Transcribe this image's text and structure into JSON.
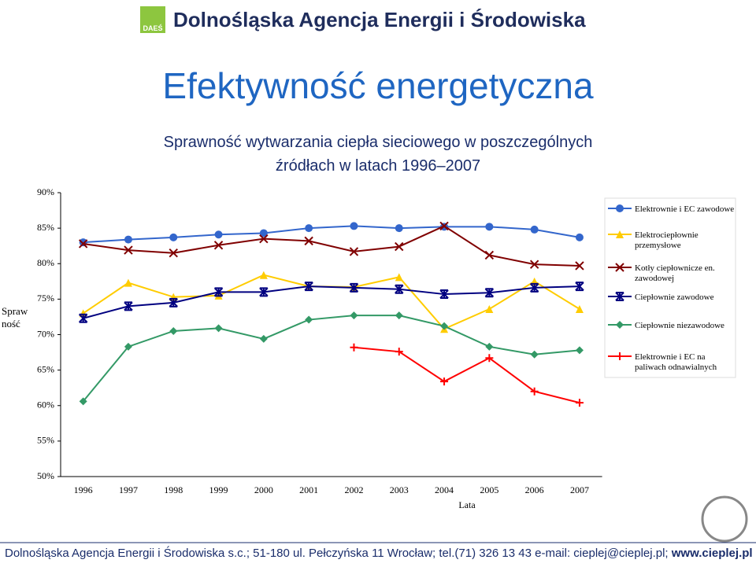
{
  "header": {
    "logo": "DAEŚ",
    "title": "Dolnośląska Agencja Energii i Środowiska"
  },
  "slide_title": "Efektywność energetyczna",
  "chart_data": {
    "type": "line",
    "title": "Sprawność wytwarzania ciepła sieciowego w poszczególnych źródłach w latach 1996–2007",
    "x_label": "Lata",
    "y_label": "Spraw ność",
    "categories": [
      "1996",
      "1997",
      "1998",
      "1999",
      "2000",
      "2001",
      "2002",
      "2003",
      "2004",
      "2005",
      "2006",
      "2007"
    ],
    "ylim": [
      50,
      90
    ],
    "yticks": [
      {
        "value": 50,
        "label": "50%"
      },
      {
        "value": 55,
        "label": "55%"
      },
      {
        "value": 60,
        "label": "60%"
      },
      {
        "value": 65,
        "label": "65%"
      },
      {
        "value": 70,
        "label": "70%"
      },
      {
        "value": 75,
        "label": "75%"
      },
      {
        "value": 80,
        "label": "80%"
      },
      {
        "value": 85,
        "label": "85%"
      },
      {
        "value": 90,
        "label": "90%"
      }
    ],
    "grid": false,
    "series": [
      {
        "name": "Elektrownie i EC zawodowe",
        "color": "#3366cc",
        "marker": "circle",
        "values": [
          83.0,
          83.4,
          83.7,
          84.1,
          84.3,
          85.0,
          85.3,
          85.0,
          85.2,
          85.2,
          84.8,
          83.7
        ]
      },
      {
        "name": "Elektrociepłownie przemysłowe",
        "color": "#ffcc00",
        "marker": "triangle",
        "values": [
          73.0,
          77.3,
          75.3,
          75.5,
          78.4,
          76.8,
          76.7,
          78.1,
          70.8,
          73.6,
          77.5,
          73.6
        ]
      },
      {
        "name": "Kotły ciepłownicze en. zawodowej",
        "color": "#800000",
        "marker": "x",
        "values": [
          82.8,
          81.9,
          81.5,
          82.6,
          83.5,
          83.2,
          81.7,
          82.4,
          85.3,
          81.2,
          79.9,
          79.7
        ]
      },
      {
        "name": "Ciepłownie zawodowe",
        "color": "#000080",
        "marker": "star",
        "values": [
          72.3,
          74.0,
          74.5,
          76.0,
          76.0,
          76.8,
          76.6,
          76.4,
          75.7,
          75.9,
          76.6,
          76.8
        ]
      },
      {
        "name": "Ciepłownie niezawodowe",
        "color": "#339966",
        "marker": "diamond",
        "values": [
          60.6,
          68.3,
          70.5,
          70.9,
          69.4,
          72.1,
          72.7,
          72.7,
          71.2,
          68.3,
          67.2,
          67.8
        ]
      },
      {
        "name": "Elektrownie i EC na paliwach odnawialnych",
        "color": "#ff0000",
        "marker": "plus",
        "values": [
          null,
          null,
          null,
          null,
          null,
          null,
          68.2,
          67.6,
          63.4,
          66.7,
          62.0,
          60.4
        ]
      }
    ]
  },
  "footer": {
    "text": "Dolnośląska Agencja Energii i Środowiska s.c.; 51-180 ul. Pełczyńska 11 Wrocław; tel.(71) 326 13 43 e-mail: cieplej@cieplej.pl;",
    "url": "www.cieplej.pl"
  }
}
